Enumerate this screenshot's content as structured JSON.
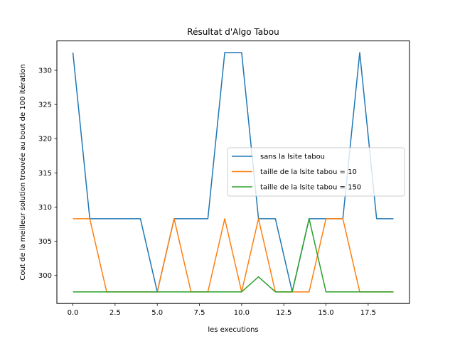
{
  "chart_data": {
    "type": "line",
    "title": "Résultat d'Algo Tabou",
    "xlabel": "les executions",
    "ylabel": "Cout de la meilleur solution trouvée au bout de 100 itération",
    "xlim": [
      -0.95,
      19.95
    ],
    "ylim": [
      295.9,
      334.3
    ],
    "xticks": [
      0,
      2.5,
      5,
      7.5,
      10,
      12.5,
      15,
      17.5
    ],
    "xtick_labels": [
      "0.0",
      "2.5",
      "5.0",
      "7.5",
      "10.0",
      "12.5",
      "15.0",
      "17.5"
    ],
    "yticks": [
      300,
      305,
      310,
      315,
      320,
      325,
      330
    ],
    "ytick_labels": [
      "300",
      "305",
      "310",
      "315",
      "320",
      "325",
      "330"
    ],
    "grid": false,
    "legend_position": "center-right",
    "x": [
      0,
      1,
      2,
      3,
      4,
      5,
      6,
      7,
      8,
      9,
      10,
      11,
      12,
      13,
      14,
      15,
      16,
      17,
      18,
      19
    ],
    "series": [
      {
        "name": "sans la lsite tabou",
        "color": "#1f77b4",
        "values": [
          332.6,
          308.3,
          308.3,
          308.3,
          308.3,
          297.6,
          308.3,
          308.3,
          308.3,
          332.6,
          332.6,
          308.3,
          308.3,
          297.6,
          308.3,
          308.3,
          308.3,
          332.6,
          308.3,
          308.3
        ]
      },
      {
        "name": "taille de la lsite tabou = 10",
        "color": "#ff7f0e",
        "values": [
          308.3,
          308.3,
          297.6,
          297.6,
          297.6,
          297.6,
          308.3,
          297.6,
          297.6,
          308.3,
          297.6,
          308.3,
          297.6,
          297.6,
          297.6,
          308.3,
          308.3,
          297.6,
          297.6,
          297.6
        ]
      },
      {
        "name": "taille de la lsite tabou = 150",
        "color": "#2ca02c",
        "values": [
          297.6,
          297.6,
          297.6,
          297.6,
          297.6,
          297.6,
          297.6,
          297.6,
          297.6,
          297.6,
          297.6,
          299.8,
          297.6,
          297.6,
          308.3,
          297.6,
          297.6,
          297.6,
          297.6,
          297.6
        ]
      }
    ]
  }
}
